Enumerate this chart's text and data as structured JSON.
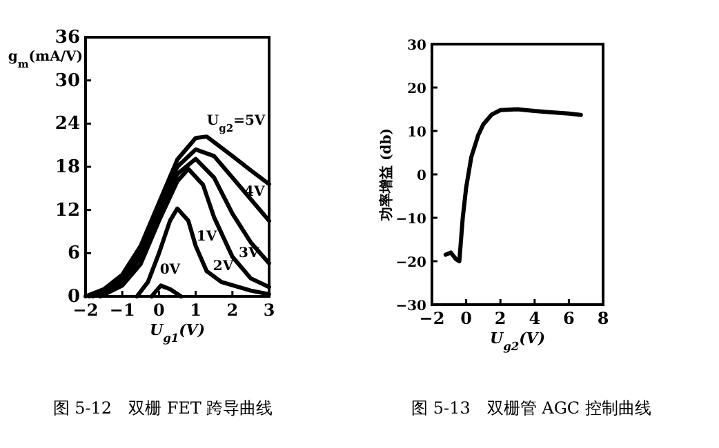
{
  "chart_data": [
    {
      "type": "line",
      "ylabel": "g$_{m}$(mA/V)",
      "xlabel": "U$_{g1}$(V)",
      "xlim": [
        -2,
        3
      ],
      "ylim": [
        0,
        36
      ],
      "xticks": [
        -2,
        -1,
        0,
        1,
        2,
        3
      ],
      "yticks": [
        0,
        6,
        12,
        18,
        24,
        30,
        36
      ],
      "grid": false,
      "marker": "none",
      "annotations": [
        "图 5-12　双栅 FET 跨导曲线"
      ],
      "series": [
        {
          "name": "U$_{g2}$=5V",
          "color": "#000000",
          "x": [
            -2,
            -1.5,
            -1,
            -0.5,
            0,
            0.5,
            1,
            1.3,
            2,
            2.5,
            3
          ],
          "values": [
            0,
            1,
            3,
            7,
            13,
            19,
            22,
            22.2,
            19.5,
            17.5,
            15.6
          ]
        },
        {
          "name": "4V",
          "color": "#000000",
          "x": [
            -1.9,
            -1.5,
            -1,
            -0.5,
            0,
            0.5,
            1,
            1.5,
            2,
            2.5,
            3
          ],
          "values": [
            0,
            0.8,
            2.5,
            6.5,
            12.5,
            18,
            20.4,
            19.5,
            16.5,
            13.5,
            10.5
          ]
        },
        {
          "name": "3V",
          "color": "#000000",
          "x": [
            -1.8,
            -1.5,
            -1,
            -0.5,
            0,
            0.5,
            1,
            1.5,
            2,
            2.5,
            3
          ],
          "values": [
            0,
            0.5,
            2,
            5.5,
            11.5,
            17,
            19.1,
            16.5,
            11.5,
            7.5,
            4.6
          ]
        },
        {
          "name": "2V",
          "color": "#000000",
          "x": [
            -1.6,
            -1,
            -0.5,
            0,
            0.5,
            0.8,
            1.2,
            1.5,
            2,
            2.5,
            3
          ],
          "values": [
            0,
            1.5,
            4.5,
            10.5,
            16,
            17.7,
            15.5,
            11,
            5.5,
            2.5,
            1.3
          ]
        },
        {
          "name": "1V",
          "color": "#000000",
          "x": [
            -0.6,
            -0.3,
            0,
            0.3,
            0.5,
            0.8,
            1,
            1.3,
            1.7,
            2.5,
            3
          ],
          "values": [
            0,
            2,
            6,
            10.5,
            12.2,
            10.5,
            7,
            3.5,
            2,
            0.8,
            0.3
          ]
        },
        {
          "name": "0V",
          "color": "#000000",
          "x": [
            -0.2,
            0.05,
            0.3,
            0.6
          ],
          "values": [
            0,
            1.5,
            1,
            0
          ]
        }
      ]
    },
    {
      "type": "line",
      "ylabel": "功率增益 (db)",
      "xlabel": "U$_{g2}$(V)",
      "xlim": [
        -2,
        8
      ],
      "ylim": [
        -30,
        30
      ],
      "xticks": [
        -2,
        0,
        2,
        4,
        6,
        8
      ],
      "yticks": [
        -30,
        -20,
        -10,
        0,
        10,
        20,
        30
      ],
      "grid": false,
      "marker": "none",
      "annotations": [
        "图 5-13　双栅管 AGC 控制曲线"
      ],
      "series": [
        {
          "color": "#000000",
          "x": [
            -1.2,
            -0.9,
            -0.6,
            -0.4,
            -0.2,
            0,
            0.3,
            0.7,
            1,
            1.5,
            2,
            3,
            4,
            5,
            6,
            6.7
          ],
          "values": [
            -18.5,
            -18,
            -19.5,
            -20,
            -10,
            -3,
            4,
            9,
            11.5,
            13.8,
            14.8,
            15,
            14.6,
            14.3,
            14,
            13.7
          ]
        }
      ]
    }
  ]
}
